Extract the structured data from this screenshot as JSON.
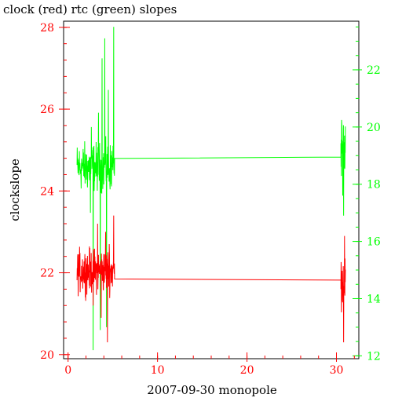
{
  "chart_data": {
    "type": "line",
    "title": "clock (red) rtc (green) slopes",
    "xlabel": "2007-09-30 monopole",
    "ylabel": "clockslope",
    "xlim": [
      -0.5,
      32.5
    ],
    "ylim_left": [
      19.9,
      28.15
    ],
    "ylim_right": [
      11.9,
      23.7
    ],
    "x_ticks_major": [
      0,
      10,
      20,
      30
    ],
    "x_ticks_minor_step": 2,
    "y_left_ticks_major": [
      20,
      22,
      24,
      26,
      28
    ],
    "y_left_ticks_minor_step": 0.4,
    "y_right_ticks_major": [
      12,
      14,
      16,
      18,
      20,
      22
    ],
    "y_right_ticks_minor_step": 0.5,
    "axis_colors": {
      "left": "#ff0000",
      "right": "#00ff00",
      "frame": "#000000"
    },
    "grid": false,
    "legend": "none",
    "series": [
      {
        "axis": "left",
        "color": "#ff0000",
        "dense_region": {
          "x_start": 1.0,
          "x_end": 5.2,
          "step": 0.022,
          "center": 22.05,
          "spread": 0.45,
          "spikes": [
            {
              "x": 2.8,
              "y": 21.2
            },
            {
              "x": 3.3,
              "y": 23.2
            },
            {
              "x": 3.7,
              "y": 20.9
            },
            {
              "x": 4.2,
              "y": 23.0
            },
            {
              "x": 4.4,
              "y": 20.3
            },
            {
              "x": 4.6,
              "y": 22.7
            },
            {
              "x": 5.1,
              "y": 23.4
            }
          ]
        },
        "flat_segment": [
          {
            "x": 5.2,
            "y": 21.85
          },
          {
            "x": 30.5,
            "y": 21.82
          }
        ],
        "late_region": {
          "x_start": 30.5,
          "x_end": 31.0,
          "step": 0.02,
          "center": 21.8,
          "spread": 0.55,
          "spikes": [
            {
              "x": 30.8,
              "y": 20.3
            },
            {
              "x": 30.9,
              "y": 22.9
            }
          ]
        }
      },
      {
        "axis": "right",
        "color": "#00ff00",
        "dense_region": {
          "x_start": 1.0,
          "x_end": 5.2,
          "step": 0.022,
          "center": 18.6,
          "spread": 0.7,
          "spikes": [
            {
              "x": 2.5,
              "y": 17.0
            },
            {
              "x": 2.6,
              "y": 20.0
            },
            {
              "x": 2.8,
              "y": 12.2
            },
            {
              "x": 3.4,
              "y": 20.5
            },
            {
              "x": 3.6,
              "y": 12.9
            },
            {
              "x": 3.8,
              "y": 22.4
            },
            {
              "x": 4.1,
              "y": 23.1
            },
            {
              "x": 4.3,
              "y": 13.0
            },
            {
              "x": 4.5,
              "y": 21.3
            },
            {
              "x": 4.8,
              "y": 18.0
            },
            {
              "x": 5.1,
              "y": 23.5
            }
          ]
        },
        "flat_segment": [
          {
            "x": 5.2,
            "y": 18.9
          },
          {
            "x": 30.5,
            "y": 18.95
          }
        ],
        "late_region": {
          "x_start": 30.5,
          "x_end": 31.0,
          "step": 0.02,
          "center": 19.0,
          "spread": 0.9,
          "spikes": [
            {
              "x": 30.6,
              "y": 20.1
            },
            {
              "x": 30.7,
              "y": 17.6
            },
            {
              "x": 30.8,
              "y": 16.9
            },
            {
              "x": 30.9,
              "y": 19.7
            }
          ]
        }
      }
    ]
  }
}
